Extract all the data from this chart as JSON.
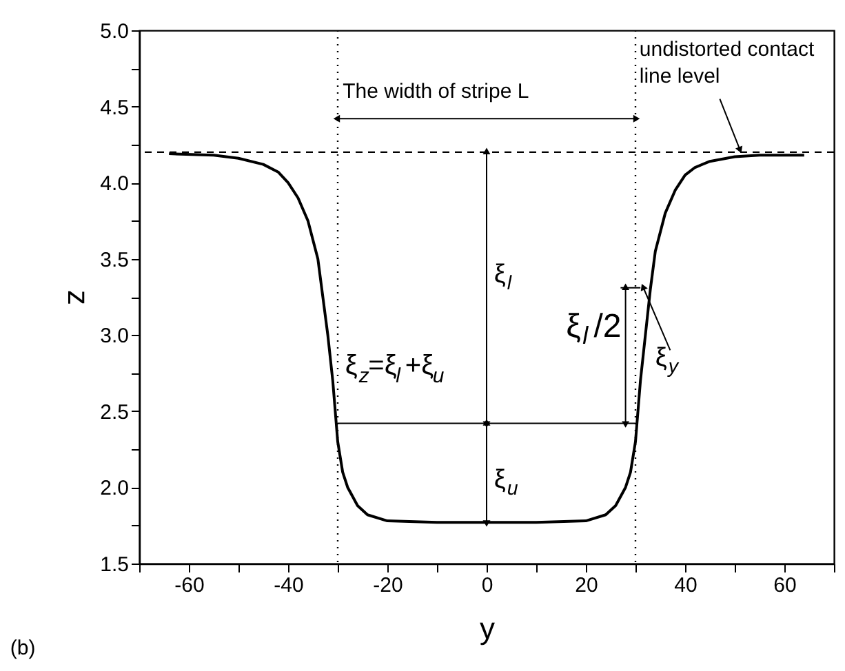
{
  "chart_data": {
    "type": "line",
    "xlabel": "y",
    "ylabel": "z",
    "series": [
      {
        "color": "#000000",
        "x": [
          -64,
          -55,
          -50,
          -45,
          -42,
          -40,
          -38,
          -36,
          -34,
          -33,
          -32,
          -31,
          -30.5,
          -30,
          -29,
          -28,
          -26,
          -24,
          -20,
          -10,
          0,
          10,
          20,
          24,
          26,
          28,
          29,
          30,
          30.5,
          31,
          32,
          33,
          34,
          36,
          38,
          40,
          42,
          45,
          50,
          55,
          64
        ],
        "values": [
          4.19,
          4.18,
          4.16,
          4.12,
          4.07,
          4.0,
          3.9,
          3.75,
          3.5,
          3.25,
          3.0,
          2.7,
          2.5,
          2.3,
          2.1,
          2.0,
          1.88,
          1.82,
          1.78,
          1.77,
          1.77,
          1.77,
          1.78,
          1.82,
          1.88,
          2.0,
          2.1,
          2.3,
          2.5,
          2.7,
          3.0,
          3.3,
          3.55,
          3.8,
          3.95,
          4.05,
          4.1,
          4.14,
          4.17,
          4.18,
          4.18
        ]
      },
      {
        "color": "#000000",
        "x": [
          -30,
          30
        ],
        "values": [
          2.42,
          2.42
        ]
      }
    ],
    "xlim": [
      -70,
      70
    ],
    "ylim": [
      1.5,
      5.0
    ],
    "xticks": [
      {
        "value": -70,
        "label": null
      },
      -60,
      {
        "value": -50,
        "label": null
      },
      -40,
      {
        "value": -30,
        "label": null
      },
      -20,
      {
        "value": -10,
        "label": null
      },
      0,
      {
        "value": 10,
        "label": null
      },
      20,
      {
        "value": 30,
        "label": null
      },
      40,
      {
        "value": 50,
        "label": null
      },
      60,
      {
        "value": 70,
        "label": null
      }
    ],
    "yticks": [
      {
        "value": 1.5,
        "label": "1.5"
      },
      {
        "value": 1.75,
        "label": null
      },
      {
        "value": 2.0,
        "label": "2.0"
      },
      {
        "value": 2.25,
        "label": null
      },
      {
        "value": 2.5,
        "label": "2.5"
      },
      {
        "value": 2.75,
        "label": null
      },
      {
        "value": 3.0,
        "label": "3.0"
      },
      {
        "value": 3.25,
        "label": null
      },
      {
        "value": 3.5,
        "label": "3.5"
      },
      {
        "value": 3.75,
        "label": null
      },
      {
        "value": 4.0,
        "label": "4.0"
      },
      {
        "value": 4.25,
        "label": null
      },
      {
        "value": 4.5,
        "label": "4.5"
      },
      {
        "value": 4.75,
        "label": null
      },
      {
        "value": 5.0,
        "label": "5.0"
      }
    ],
    "ref_lines": [
      {
        "axis": "y",
        "value": 4.2,
        "line_style": "dashed"
      },
      {
        "axis": "x",
        "value": -30,
        "line_style": "dotted"
      },
      {
        "axis": "x",
        "value": 30,
        "line_style": "dotted"
      }
    ],
    "annotations": [
      "The width of stripe L",
      {
        "text": "undistorted contact\nline level",
        "x": 51,
        "y": 4.2
      },
      "ξ$_{l}$",
      "ξ$_{z}$=ξ$_{l}$+ξ$_{u}$",
      "ξ$_{l}$ /2",
      "ξ$_{y}$",
      {
        "text": "ξ$_{u}$",
        "x": 0,
        "y": 1.77
      },
      "(b)"
    ],
    "grid": false,
    "legend": false,
    "marker": "none",
    "line_style": "solid"
  }
}
